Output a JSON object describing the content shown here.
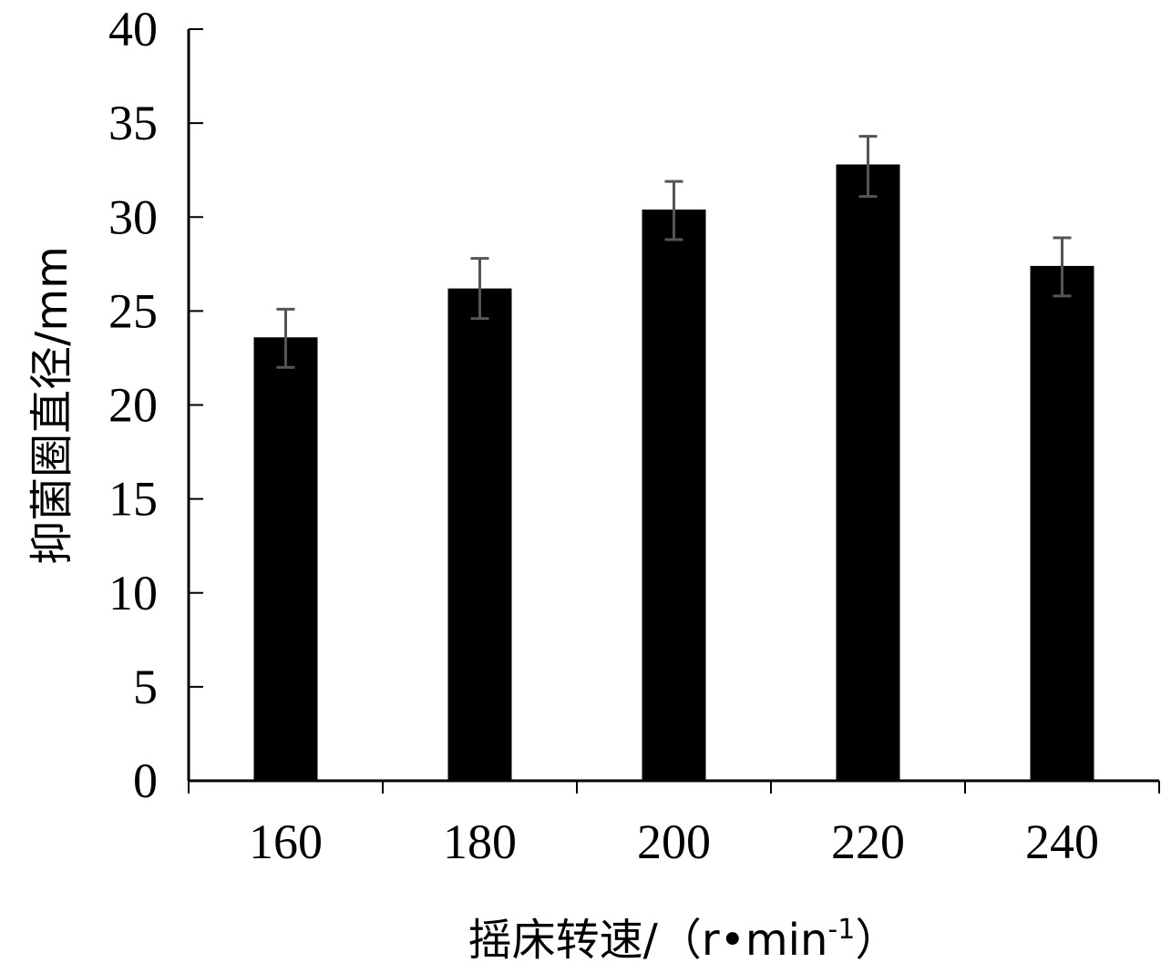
{
  "chart_data": {
    "type": "bar",
    "categories": [
      "160",
      "180",
      "200",
      "220",
      "240"
    ],
    "values": [
      23.6,
      26.2,
      30.4,
      32.8,
      27.4
    ],
    "error_low": [
      22.0,
      24.6,
      28.8,
      31.1,
      25.8
    ],
    "error_high": [
      25.1,
      27.8,
      31.9,
      34.3,
      28.9
    ],
    "title": "",
    "xlabel_prefix": "摇床转速/（r•min",
    "xlabel_sup": "-1",
    "xlabel_suffix": "）",
    "ylabel": "抑菌圈直径/mm",
    "ylim": [
      0,
      40
    ],
    "yticks": [
      "0",
      "5",
      "10",
      "15",
      "20",
      "25",
      "30",
      "35",
      "40"
    ],
    "grid": false,
    "legend": "none",
    "colors": {
      "bar": "#000000",
      "error_bar": "#555555",
      "axis": "#000000"
    }
  }
}
